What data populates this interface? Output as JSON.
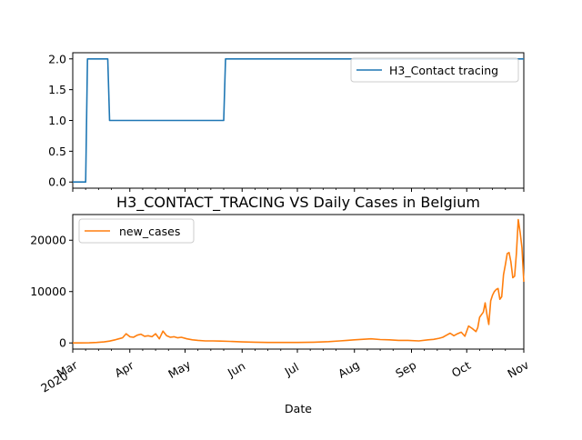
{
  "colors": {
    "series1": "#1f77b4",
    "series2": "#ff7f0e",
    "axis": "#000000",
    "legend_border": "#cccccc"
  },
  "chart_data": [
    {
      "type": "line",
      "title": "",
      "xlabel": "",
      "ylabel": "",
      "ylim": [
        -0.1,
        2.1
      ],
      "yticks": [
        0.0,
        0.5,
        1.0,
        1.5,
        2.0
      ],
      "ytick_labels": [
        "0.0",
        "0.5",
        "1.0",
        "1.5",
        "2.0"
      ],
      "xlim": [
        "2020-03-01",
        "2020-11-01"
      ],
      "grid": false,
      "legend_position": "top-right",
      "series": [
        {
          "name": "H3_Contact tracing",
          "x": [
            "2020-03-01",
            "2020-03-08",
            "2020-03-09",
            "2020-03-20",
            "2020-03-21",
            "2020-05-22",
            "2020-05-23",
            "2020-11-01"
          ],
          "values": [
            0,
            0,
            2,
            2,
            1,
            1,
            2,
            2
          ]
        }
      ]
    },
    {
      "type": "line",
      "title": "H3_CONTACT_TRACING VS Daily Cases in Belgium",
      "xlabel": "Date",
      "ylabel": "",
      "ylim": [
        -1200,
        25000
      ],
      "yticks": [
        0,
        10000,
        20000
      ],
      "ytick_labels": [
        "0",
        "10000",
        "20000"
      ],
      "xlim": [
        "2020-03-01",
        "2020-11-01"
      ],
      "xticks": [
        "2020-03-01",
        "2020-04-01",
        "2020-05-01",
        "2020-06-01",
        "2020-07-01",
        "2020-08-01",
        "2020-09-01",
        "2020-10-01",
        "2020-11-01"
      ],
      "xtick_labels": [
        "Mar\n2020",
        "Apr",
        "May",
        "Jun",
        "Jul",
        "Aug",
        "Sep",
        "Oct",
        "Nov"
      ],
      "grid": false,
      "legend_position": "top-left",
      "series": [
        {
          "name": "new_cases",
          "x": [
            "2020-03-01",
            "2020-03-05",
            "2020-03-10",
            "2020-03-14",
            "2020-03-18",
            "2020-03-21",
            "2020-03-24",
            "2020-03-26",
            "2020-03-28",
            "2020-03-30",
            "2020-04-01",
            "2020-04-03",
            "2020-04-05",
            "2020-04-07",
            "2020-04-09",
            "2020-04-11",
            "2020-04-13",
            "2020-04-15",
            "2020-04-17",
            "2020-04-19",
            "2020-04-21",
            "2020-04-23",
            "2020-04-25",
            "2020-04-27",
            "2020-04-29",
            "2020-05-02",
            "2020-05-05",
            "2020-05-08",
            "2020-05-12",
            "2020-05-16",
            "2020-05-20",
            "2020-05-25",
            "2020-06-01",
            "2020-06-08",
            "2020-06-15",
            "2020-06-22",
            "2020-07-01",
            "2020-07-10",
            "2020-07-18",
            "2020-07-24",
            "2020-07-28",
            "2020-08-01",
            "2020-08-05",
            "2020-08-10",
            "2020-08-15",
            "2020-08-20",
            "2020-08-25",
            "2020-08-30",
            "2020-09-05",
            "2020-09-10",
            "2020-09-13",
            "2020-09-16",
            "2020-09-18",
            "2020-09-20",
            "2020-09-22",
            "2020-09-24",
            "2020-09-26",
            "2020-09-28",
            "2020-09-30",
            "2020-10-02",
            "2020-10-04",
            "2020-10-06",
            "2020-10-07",
            "2020-10-08",
            "2020-10-09",
            "2020-10-10",
            "2020-10-11",
            "2020-10-12",
            "2020-10-13",
            "2020-10-14",
            "2020-10-15",
            "2020-10-16",
            "2020-10-17",
            "2020-10-18",
            "2020-10-19",
            "2020-10-20",
            "2020-10-21",
            "2020-10-22",
            "2020-10-23",
            "2020-10-24",
            "2020-10-25",
            "2020-10-26",
            "2020-10-27",
            "2020-10-28",
            "2020-10-29",
            "2020-10-30",
            "2020-10-31",
            "2020-11-01"
          ],
          "values": [
            0,
            10,
            30,
            100,
            200,
            350,
            600,
            800,
            1000,
            1800,
            1200,
            1100,
            1500,
            1700,
            1300,
            1400,
            1200,
            1800,
            800,
            2300,
            1400,
            1100,
            1200,
            1000,
            1100,
            800,
            600,
            500,
            400,
            400,
            350,
            300,
            200,
            150,
            100,
            100,
            100,
            150,
            250,
            400,
            500,
            600,
            700,
            800,
            650,
            600,
            500,
            500,
            400,
            600,
            700,
            900,
            1100,
            1500,
            1900,
            1400,
            1800,
            2100,
            1300,
            3300,
            2800,
            2200,
            3000,
            5000,
            5500,
            6000,
            7800,
            5500,
            3600,
            8200,
            9300,
            10000,
            10400,
            10600,
            8500,
            9000,
            13300,
            15300,
            17400,
            17600,
            15800,
            12700,
            13000,
            17500,
            24000,
            21500,
            18500,
            11900
          ]
        }
      ]
    }
  ]
}
